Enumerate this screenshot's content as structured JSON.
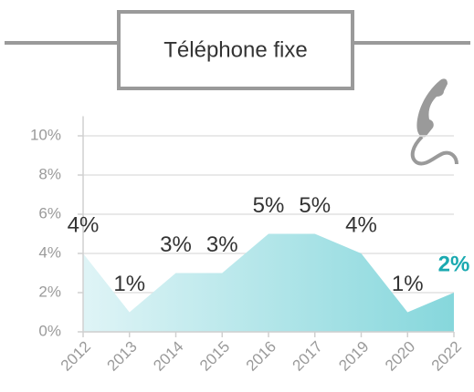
{
  "chart_data": {
    "type": "area",
    "title": "Téléphone fixe",
    "categories": [
      "2012",
      "2013",
      "2014",
      "2015",
      "2016",
      "2017",
      "2019",
      "2020",
      "2022"
    ],
    "values": [
      4,
      1,
      3,
      3,
      5,
      5,
      4,
      1,
      2
    ],
    "value_labels": [
      "4%",
      "1%",
      "3%",
      "3%",
      "5%",
      "5%",
      "4%",
      "1%",
      "2%"
    ],
    "color": "#8fdbe0",
    "highlight_color": "#1aa9b0",
    "ylim": [
      0,
      11
    ],
    "yticks": [
      {
        "value": 0,
        "label": "0%"
      },
      {
        "value": 2,
        "label": "2%"
      },
      {
        "value": 4,
        "label": "4%"
      },
      {
        "value": 6,
        "label": "6%"
      },
      {
        "value": 8,
        "label": "8%"
      },
      {
        "value": 10,
        "label": "10%"
      }
    ],
    "grid": true
  }
}
